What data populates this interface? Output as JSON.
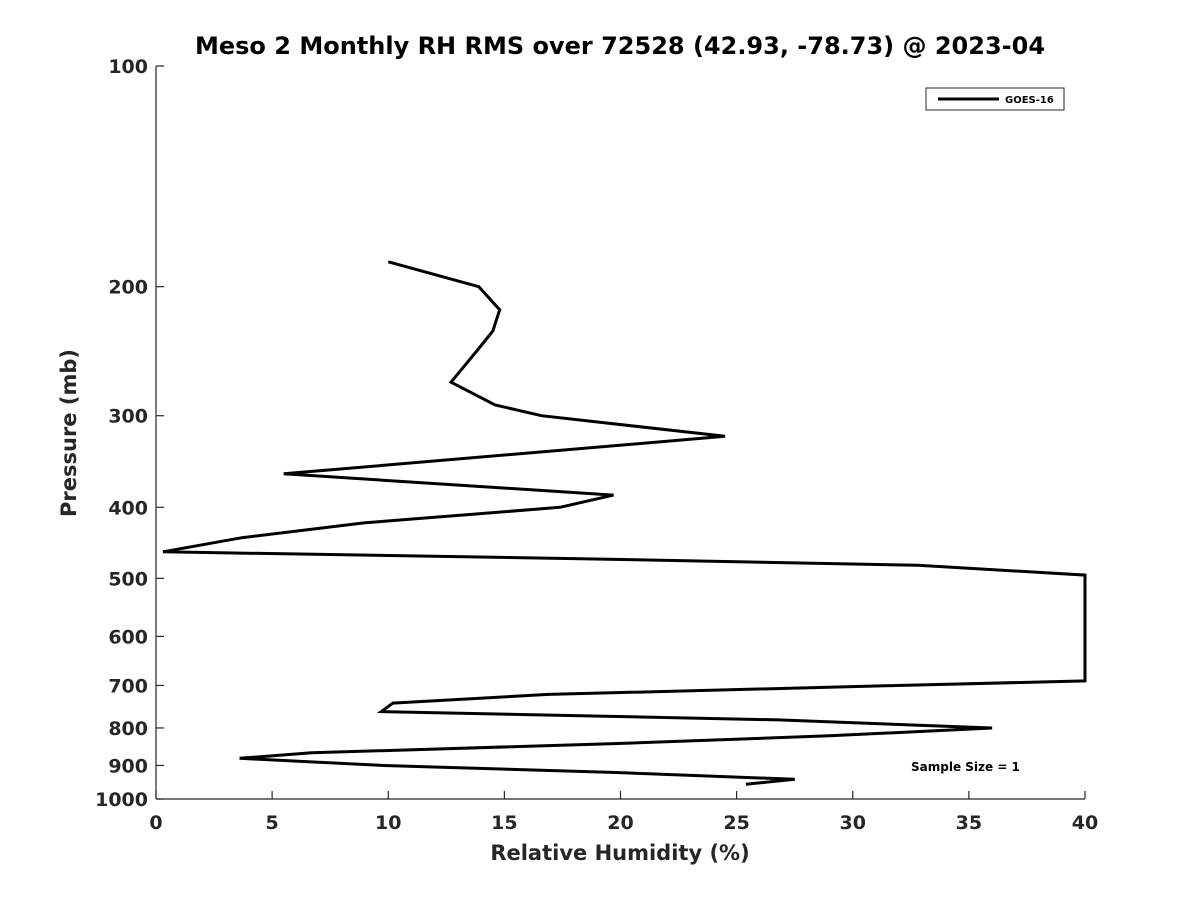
{
  "chart_data": {
    "type": "line",
    "title": "Meso 2 Monthly RH RMS over 72528 (42.93, -78.73) @ 2023-04",
    "xlabel": "Relative Humidity (%)",
    "ylabel": "Pressure (mb)",
    "xlim": [
      0,
      40
    ],
    "ylim": [
      1000,
      100
    ],
    "yscale": "log",
    "y_reversed": true,
    "grid": false,
    "legend_position": "top-right",
    "xticks": [
      0,
      5,
      10,
      15,
      20,
      25,
      30,
      35,
      40
    ],
    "yticks": [
      100,
      200,
      300,
      400,
      500,
      600,
      700,
      800,
      900,
      1000
    ],
    "series": [
      {
        "name": "GOES-16",
        "color": "#000000",
        "x": [
          10.0,
          13.9,
          14.8,
          14.5,
          13.8,
          12.7,
          14.6,
          16.6,
          24.5,
          5.5,
          19.7,
          17.4,
          9.0,
          3.7,
          0.3,
          18.0,
          32.8,
          40.0,
          40.0,
          31.9,
          16.9,
          10.2,
          9.7,
          26.8,
          36.0,
          29.0,
          19.9,
          6.7,
          3.6,
          9.8,
          19.8,
          27.5,
          25.4
        ],
        "y": [
          185,
          200,
          215,
          230,
          245,
          270,
          290,
          300,
          320,
          360,
          385,
          400,
          420,
          440,
          460,
          470,
          480,
          495,
          690,
          700,
          720,
          740,
          760,
          780,
          800,
          820,
          840,
          865,
          880,
          900,
          920,
          940,
          955
        ]
      }
    ],
    "annotations": [
      {
        "text": "Sample Size = 1"
      }
    ]
  }
}
